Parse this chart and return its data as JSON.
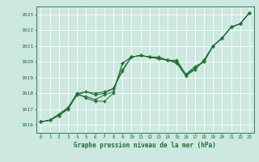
{
  "bg_color": "#cce8e0",
  "grid_color": "#ffffff",
  "line_color": "#1a6e2e",
  "xlabel": "Graphe pression niveau de la mer (hPa)",
  "xlim": [
    -0.5,
    23.5
  ],
  "ylim": [
    1015.5,
    1023.5
  ],
  "yticks": [
    1016,
    1017,
    1018,
    1019,
    1020,
    1021,
    1022,
    1023
  ],
  "xticks": [
    0,
    1,
    2,
    3,
    4,
    5,
    6,
    7,
    8,
    9,
    10,
    11,
    12,
    13,
    14,
    15,
    16,
    17,
    18,
    19,
    20,
    21,
    22,
    23
  ],
  "series": [
    [
      1016.2,
      1016.3,
      1016.6,
      1017.1,
      1017.9,
      1017.8,
      1017.6,
      1017.9,
      1018.1,
      1019.9,
      1020.3,
      1020.4,
      1020.3,
      1020.3,
      1020.1,
      1020.1,
      1019.2,
      1019.5,
      1020.1,
      1021.0,
      1021.5,
      1022.2,
      1022.4,
      1023.1
    ],
    [
      1016.2,
      1016.3,
      1016.7,
      1017.1,
      1018.0,
      1018.1,
      1017.9,
      1018.0,
      1018.3,
      1019.5,
      1020.3,
      1020.4,
      1020.3,
      1020.2,
      1020.1,
      1020.0,
      1019.2,
      1019.7,
      1020.0,
      1021.0,
      1021.5,
      1022.2,
      1022.4,
      1023.1
    ],
    [
      1016.2,
      1016.3,
      1016.6,
      1017.0,
      1018.0,
      1017.7,
      1017.5,
      1017.5,
      1018.0,
      1019.9,
      1020.3,
      1020.4,
      1020.3,
      1020.2,
      1020.1,
      1019.9,
      1019.1,
      1019.5,
      1020.1,
      1021.0,
      1021.5,
      1022.2,
      1022.4,
      1023.1
    ],
    [
      1016.2,
      1016.3,
      1016.6,
      1017.0,
      1017.9,
      1018.1,
      1018.0,
      1018.1,
      1018.3,
      1019.4,
      1020.3,
      1020.4,
      1020.3,
      1020.2,
      1020.1,
      1020.0,
      1019.2,
      1019.6,
      1020.0,
      1021.0,
      1021.5,
      1022.2,
      1022.4,
      1023.1
    ]
  ]
}
